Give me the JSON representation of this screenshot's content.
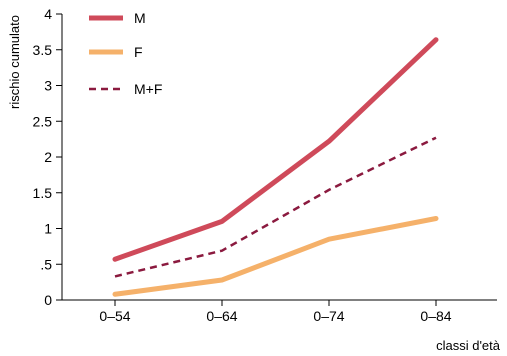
{
  "chart_data": {
    "type": "line",
    "categories": [
      "0–54",
      "0–64",
      "0–74",
      "0–84"
    ],
    "series": [
      {
        "name": "M",
        "values": [
          0.57,
          1.1,
          2.22,
          3.64
        ],
        "color": "#cf4a5a",
        "style": "solid"
      },
      {
        "name": "F",
        "values": [
          0.08,
          0.28,
          0.85,
          1.14
        ],
        "color": "#f5b16a",
        "style": "solid"
      },
      {
        "name": "M+F",
        "values": [
          0.33,
          0.69,
          1.54,
          2.27
        ],
        "color": "#8b1a3f",
        "style": "dashed"
      }
    ],
    "title": "",
    "xlabel": "classi d'età",
    "ylabel": "rischio cumulato",
    "ylim": [
      0,
      4
    ],
    "yticks": [
      0,
      0.5,
      1,
      1.5,
      2,
      2.5,
      3,
      3.5,
      4
    ],
    "ytick_labels": [
      "0",
      ".5",
      "1",
      "1.5",
      "2",
      "2.5",
      "3",
      "3.5",
      "4"
    ],
    "grid": false,
    "legend_position": "top-left"
  }
}
